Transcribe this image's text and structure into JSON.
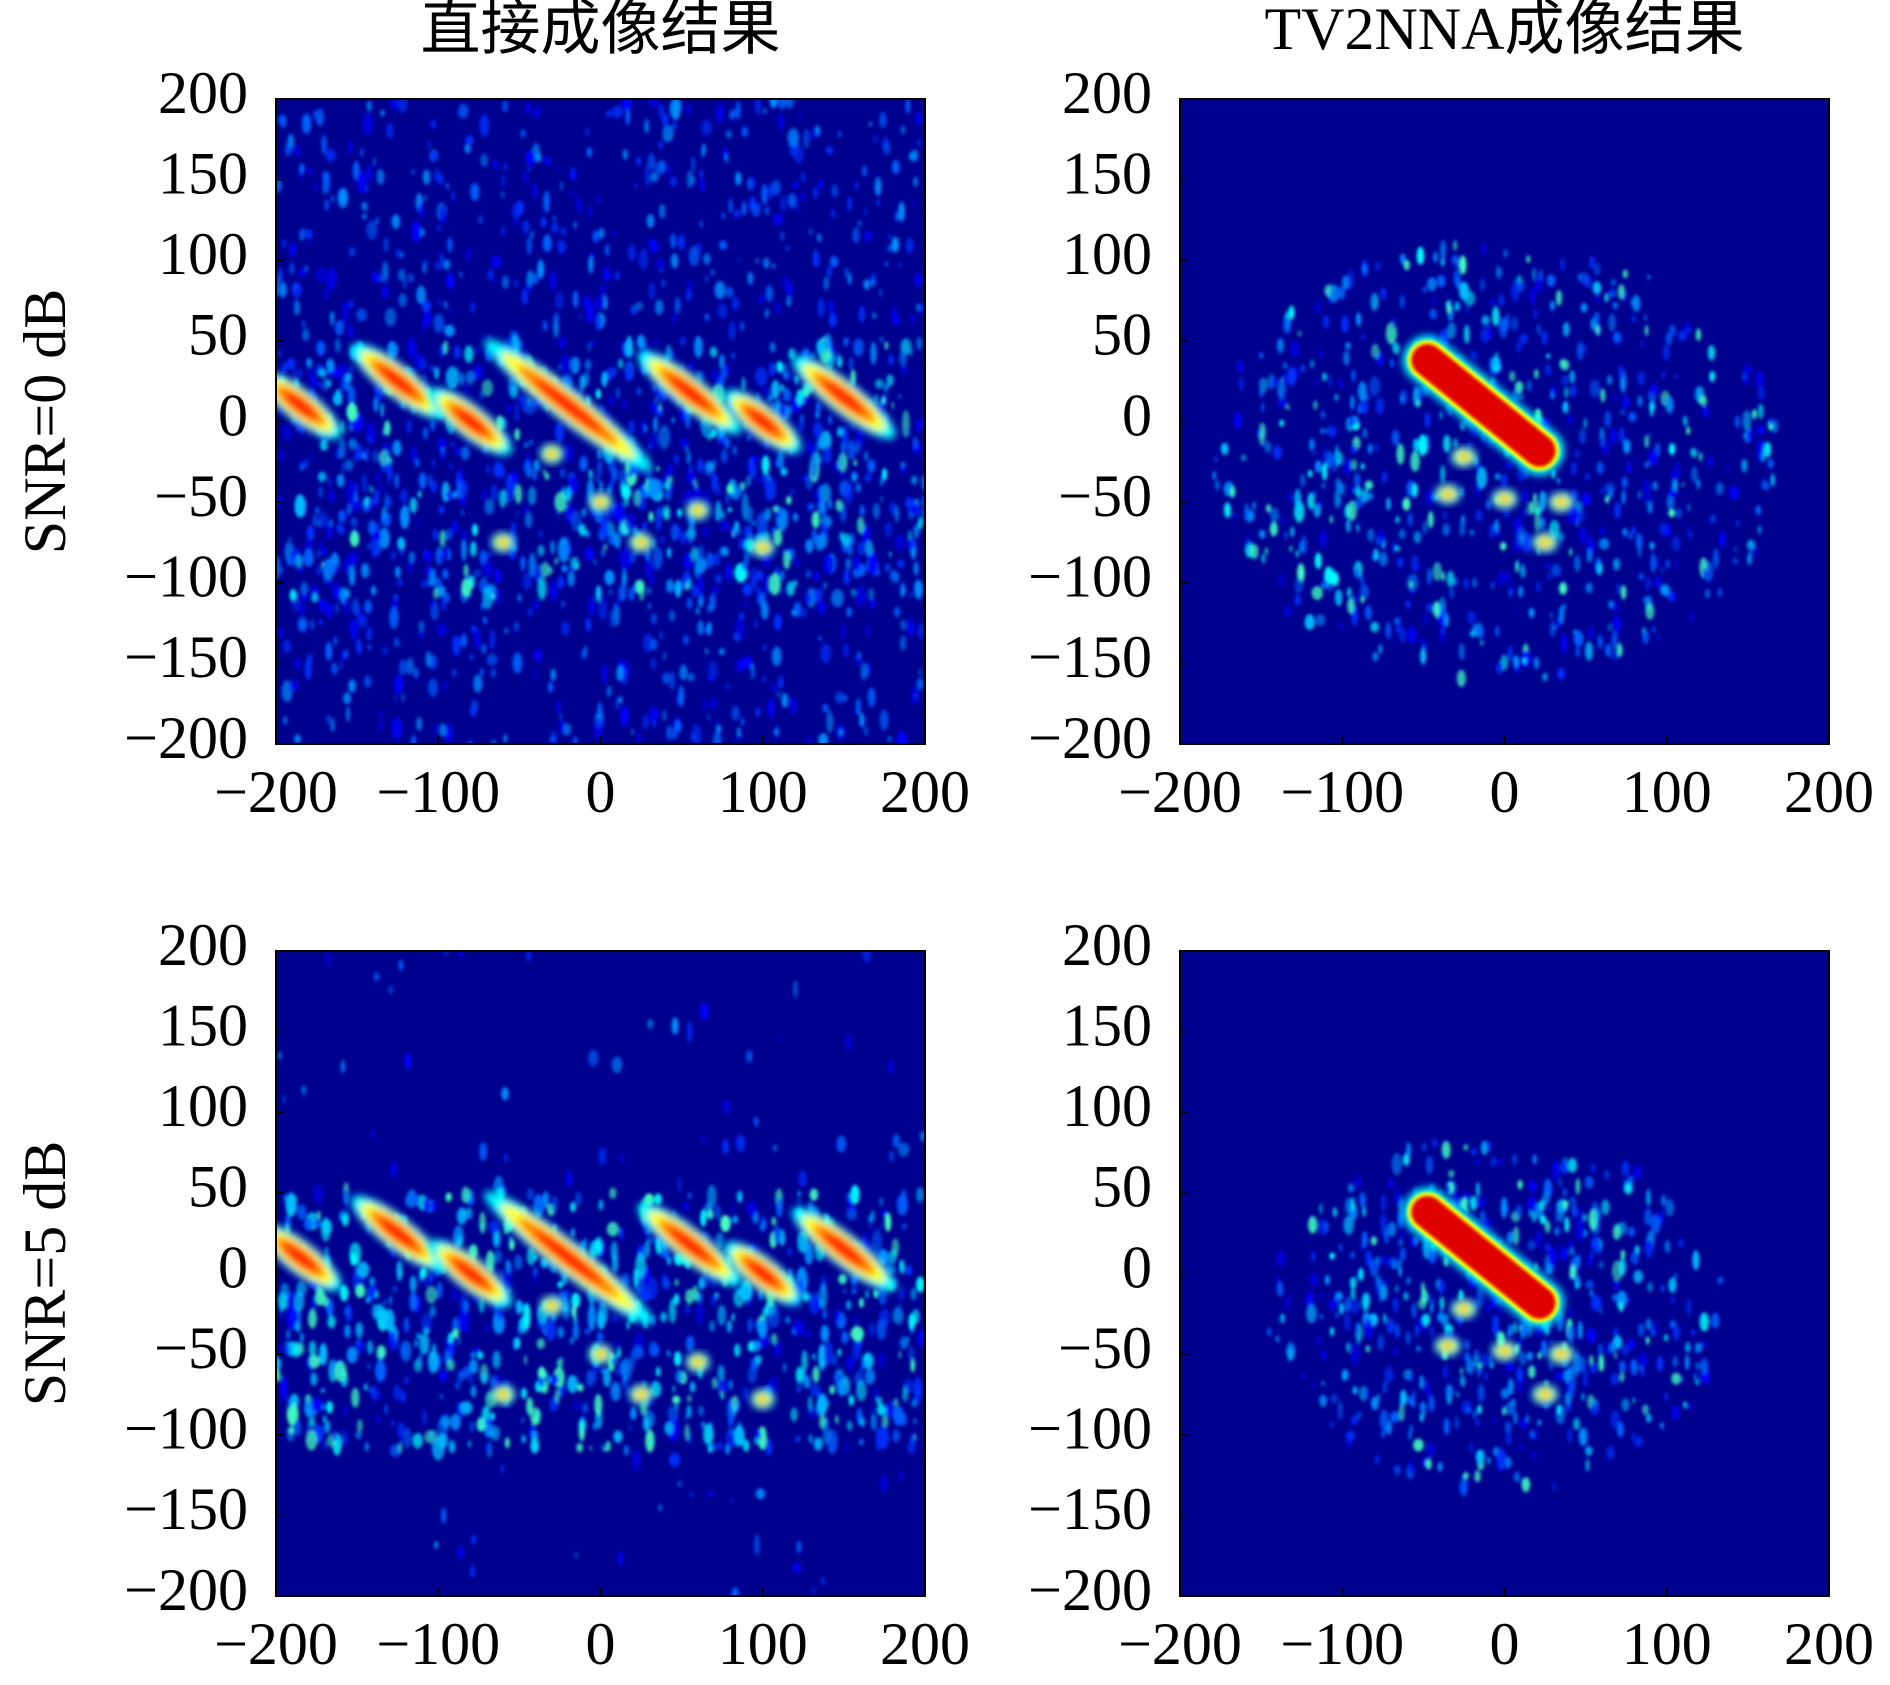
{
  "chart_data": [
    {
      "type": "image",
      "title": "直接成像结果",
      "ylabel": "SNR=0 dB",
      "xlim": [
        -200,
        200
      ],
      "ylim": [
        -200,
        200
      ],
      "xticks": [
        {
          "value": -200,
          "label": "−200"
        },
        {
          "value": -100,
          "label": "−100"
        },
        0,
        100,
        200
      ],
      "yticks": [
        {
          "value": -200,
          "label": "−200"
        },
        {
          "value": -150,
          "label": "−150"
        },
        {
          "value": -100,
          "label": "−100"
        },
        {
          "value": -50,
          "label": "−50"
        },
        0,
        50,
        100,
        150,
        200
      ]
    },
    {
      "type": "image",
      "title": "TV2NNA成像结果",
      "xlim": [
        -200,
        200
      ],
      "ylim": [
        -200,
        200
      ],
      "xticks": [
        {
          "value": -200,
          "label": "−200"
        },
        {
          "value": -100,
          "label": "−100"
        },
        0,
        100,
        200
      ],
      "yticks": [
        {
          "value": -200,
          "label": "−200"
        },
        {
          "value": -150,
          "label": "−150"
        },
        {
          "value": -100,
          "label": "−100"
        },
        {
          "value": -50,
          "label": "−50"
        },
        0,
        50,
        100,
        150,
        200
      ]
    },
    {
      "type": "image",
      "ylabel": "SNR=5 dB",
      "xlim": [
        -200,
        200
      ],
      "ylim": [
        -200,
        200
      ],
      "xticks": [
        {
          "value": -200,
          "label": "−200"
        },
        {
          "value": -100,
          "label": "−100"
        },
        0,
        100,
        200
      ],
      "yticks": [
        {
          "value": -200,
          "label": "−200"
        },
        {
          "value": -150,
          "label": "−150"
        },
        {
          "value": -100,
          "label": "−100"
        },
        {
          "value": -50,
          "label": "−50"
        },
        0,
        50,
        100,
        150,
        200
      ]
    },
    {
      "type": "image",
      "xlim": [
        -200,
        200
      ],
      "ylim": [
        -200,
        200
      ],
      "xticks": [
        {
          "value": -200,
          "label": "−200"
        },
        {
          "value": -100,
          "label": "−100"
        },
        0,
        100,
        200
      ],
      "yticks": [
        {
          "value": -200,
          "label": "−200"
        },
        {
          "value": -150,
          "label": "−150"
        },
        {
          "value": -100,
          "label": "−100"
        },
        {
          "value": -50,
          "label": "−50"
        },
        0,
        50,
        100,
        150,
        200
      ]
    }
  ]
}
